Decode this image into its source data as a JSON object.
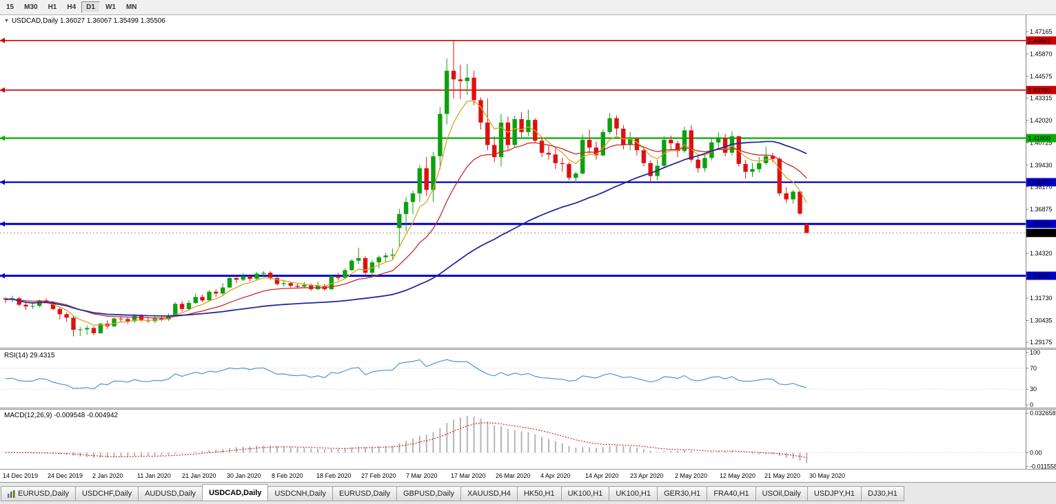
{
  "toolbar": {
    "buttons": [
      {
        "label": "15"
      },
      {
        "label": "M30"
      },
      {
        "label": "H1"
      },
      {
        "label": "H4"
      },
      {
        "label": "D1",
        "active": true
      },
      {
        "label": "W1"
      },
      {
        "label": "MN"
      }
    ]
  },
  "chart": {
    "symbol": "USDCAD,Daily",
    "title_text": "USDCAD,Daily 1.36027 1.36067 1.35499 1.35506",
    "ohlc": {
      "open": "1.36027",
      "high": "1.36067",
      "low": "1.35499",
      "close": "1.35506"
    }
  },
  "indicators": {
    "rsi": {
      "name": "RSI",
      "period": 14,
      "value": "29.4315",
      "label_text": "RSI(14) 29.4315",
      "axis_labels": [
        "100",
        "70",
        "30",
        "0"
      ],
      "levels": [
        70,
        30
      ]
    },
    "macd": {
      "name": "MACD",
      "params": "12,26,9",
      "values": [
        "-0.009548",
        "-0.004942"
      ],
      "label_text": "MACD(12,26,9) -0.009548 -0.004942",
      "axis_labels": [
        "0.032658",
        "0.00",
        "-0.011558"
      ]
    }
  },
  "chart_data": {
    "type": "candlestick",
    "symbol": "USDCAD",
    "timeframe": "Daily",
    "axis": {
      "price_min": 1.2886,
      "price_max": 1.4812,
      "ticks": [
        "1.47165",
        "1.45870",
        "1.44575",
        "1.43315",
        "1.42020",
        "1.40725",
        "1.39430",
        "1.38170",
        "1.36875",
        "1.34320",
        "1.31730",
        "1.30435",
        "1.29175"
      ]
    },
    "bid": {
      "price": 1.35506,
      "label": "1.35506",
      "color": "#000000"
    },
    "hlines": [
      {
        "price": 1.46651,
        "label": "1.46651",
        "color": "#cc0000",
        "width": 1.6
      },
      {
        "price": 1.4378,
        "label": "1.43780",
        "color": "#cc0000",
        "width": 1.6
      },
      {
        "price": 1.41,
        "label": "1.41000",
        "color": "#00b000",
        "width": 2.2
      },
      {
        "price": 1.38447,
        "label": "1.38447",
        "color": "#0000cc",
        "width": 2.2
      },
      {
        "price": 1.36029,
        "label": "1.36029",
        "color": "#0000cc",
        "width": 3
      },
      {
        "price": 1.33026,
        "label": "1.33026",
        "color": "#0000cc",
        "width": 3
      }
    ],
    "moving_averages": [
      {
        "kind": "ema",
        "period": 6,
        "color": "#d9a420",
        "width": 1.3
      },
      {
        "kind": "ema",
        "period": 18,
        "color": "#c62828",
        "width": 1.3
      },
      {
        "kind": "sma",
        "period": 50,
        "color": "#26269e",
        "width": 1.8
      }
    ],
    "candle_colors": {
      "up": "#0fa00f",
      "down": "#e01010"
    },
    "rsi_line_color": "#4a96d2",
    "macd_colors": {
      "histogram": "#b4b4b4",
      "signal": "#cc0000"
    },
    "macd_axis": {
      "min": -0.0135,
      "max": 0.0355
    },
    "candles": [
      [
        1.3172,
        1.3178,
        1.3143,
        1.3165
      ],
      [
        1.3165,
        1.3187,
        1.315,
        1.3172
      ],
      [
        1.3172,
        1.3181,
        1.3126,
        1.3135
      ],
      [
        1.3135,
        1.315,
        1.3105,
        1.3125
      ],
      [
        1.3125,
        1.315,
        1.311,
        1.3128
      ],
      [
        1.3128,
        1.3165,
        1.312,
        1.316
      ],
      [
        1.316,
        1.3172,
        1.3143,
        1.315
      ],
      [
        1.315,
        1.3155,
        1.3103,
        1.311
      ],
      [
        1.311,
        1.3118,
        1.305,
        1.308
      ],
      [
        1.308,
        1.309,
        1.3035,
        1.306
      ],
      [
        1.306,
        1.307,
        1.2952,
        1.299
      ],
      [
        1.299,
        1.3005,
        1.2955,
        1.2992
      ],
      [
        1.2992,
        1.3015,
        1.296,
        1.3
      ],
      [
        1.3,
        1.301,
        1.2958,
        1.297
      ],
      [
        1.297,
        1.303,
        1.2965,
        1.3025
      ],
      [
        1.3025,
        1.3045,
        1.2995,
        1.301
      ],
      [
        1.301,
        1.306,
        1.3005,
        1.3055
      ],
      [
        1.3055,
        1.307,
        1.3035,
        1.3052
      ],
      [
        1.3052,
        1.306,
        1.3025,
        1.304
      ],
      [
        1.304,
        1.308,
        1.303,
        1.307
      ],
      [
        1.307,
        1.308,
        1.3035,
        1.3045
      ],
      [
        1.3045,
        1.3065,
        1.303,
        1.304
      ],
      [
        1.304,
        1.307,
        1.3028,
        1.3055
      ],
      [
        1.3055,
        1.307,
        1.304,
        1.305
      ],
      [
        1.305,
        1.3085,
        1.304,
        1.307
      ],
      [
        1.307,
        1.315,
        1.3065,
        1.314
      ],
      [
        1.314,
        1.3155,
        1.3095,
        1.311
      ],
      [
        1.311,
        1.316,
        1.31,
        1.3145
      ],
      [
        1.3145,
        1.32,
        1.314,
        1.318
      ],
      [
        1.318,
        1.3195,
        1.315,
        1.316
      ],
      [
        1.316,
        1.322,
        1.3155,
        1.321
      ],
      [
        1.321,
        1.3225,
        1.318,
        1.32
      ],
      [
        1.32,
        1.326,
        1.319,
        1.3235
      ],
      [
        1.3235,
        1.33,
        1.323,
        1.329
      ],
      [
        1.329,
        1.3305,
        1.326,
        1.328
      ],
      [
        1.328,
        1.332,
        1.327,
        1.33
      ],
      [
        1.33,
        1.3312,
        1.327,
        1.3285
      ],
      [
        1.3285,
        1.3325,
        1.3275,
        1.3315
      ],
      [
        1.3315,
        1.333,
        1.3295,
        1.332
      ],
      [
        1.332,
        1.333,
        1.328,
        1.329
      ],
      [
        1.329,
        1.3295,
        1.3245,
        1.3255
      ],
      [
        1.3255,
        1.328,
        1.324,
        1.326
      ],
      [
        1.326,
        1.327,
        1.3235,
        1.3245
      ],
      [
        1.3245,
        1.3255,
        1.323,
        1.324
      ],
      [
        1.324,
        1.3268,
        1.323,
        1.325
      ],
      [
        1.325,
        1.3258,
        1.3215,
        1.3225
      ],
      [
        1.3225,
        1.327,
        1.322,
        1.3245
      ],
      [
        1.3245,
        1.3255,
        1.3215,
        1.3225
      ],
      [
        1.3225,
        1.331,
        1.322,
        1.33
      ],
      [
        1.33,
        1.332,
        1.3275,
        1.329
      ],
      [
        1.329,
        1.3345,
        1.3285,
        1.3335
      ],
      [
        1.3335,
        1.34,
        1.333,
        1.339
      ],
      [
        1.339,
        1.3465,
        1.337,
        1.3405
      ],
      [
        1.3405,
        1.3415,
        1.3305,
        1.332
      ],
      [
        1.332,
        1.3395,
        1.329,
        1.338
      ],
      [
        1.338,
        1.342,
        1.3345,
        1.341
      ],
      [
        1.341,
        1.3435,
        1.338,
        1.342
      ],
      [
        1.342,
        1.346,
        1.34,
        1.3425
      ],
      [
        1.358,
        1.369,
        1.347,
        1.366
      ],
      [
        1.366,
        1.376,
        1.356,
        1.373
      ],
      [
        1.373,
        1.3795,
        1.366,
        1.378
      ],
      [
        1.378,
        1.3945,
        1.373,
        1.3925
      ],
      [
        1.3925,
        1.399,
        1.3765,
        1.38
      ],
      [
        1.38,
        1.402,
        1.373,
        1.3995
      ],
      [
        1.3995,
        1.428,
        1.392,
        1.424
      ],
      [
        1.424,
        1.456,
        1.418,
        1.449
      ],
      [
        1.449,
        1.4668,
        1.433,
        1.444
      ],
      [
        1.444,
        1.4525,
        1.4325,
        1.443
      ],
      [
        1.443,
        1.453,
        1.435,
        1.445
      ],
      [
        1.445,
        1.449,
        1.429,
        1.432
      ],
      [
        1.432,
        1.4335,
        1.415,
        1.419
      ],
      [
        1.419,
        1.433,
        1.403,
        1.406
      ],
      [
        1.406,
        1.411,
        1.396,
        1.399
      ],
      [
        1.399,
        1.424,
        1.3935,
        1.419
      ],
      [
        1.419,
        1.4225,
        1.403,
        1.406
      ],
      [
        1.406,
        1.423,
        1.4045,
        1.421
      ],
      [
        1.421,
        1.425,
        1.4105,
        1.4135
      ],
      [
        1.4135,
        1.4265,
        1.411,
        1.4205
      ],
      [
        1.4205,
        1.4215,
        1.4075,
        1.4085
      ],
      [
        1.4085,
        1.4105,
        1.399,
        1.4015
      ],
      [
        1.4015,
        1.406,
        1.3975,
        1.4005
      ],
      [
        1.4005,
        1.405,
        1.392,
        1.3955
      ],
      [
        1.3955,
        1.3985,
        1.3905,
        1.395
      ],
      [
        1.395,
        1.396,
        1.3855,
        1.387
      ],
      [
        1.387,
        1.3905,
        1.384,
        1.3895
      ],
      [
        1.3895,
        1.412,
        1.389,
        1.409
      ],
      [
        1.409,
        1.415,
        1.401,
        1.4045
      ],
      [
        1.4045,
        1.408,
        1.3975,
        1.4
      ],
      [
        1.4,
        1.415,
        1.3995,
        1.4135
      ],
      [
        1.4135,
        1.4245,
        1.412,
        1.4215
      ],
      [
        1.4215,
        1.423,
        1.4115,
        1.4155
      ],
      [
        1.4155,
        1.4175,
        1.4035,
        1.406
      ],
      [
        1.406,
        1.4135,
        1.403,
        1.4095
      ],
      [
        1.4095,
        1.4105,
        1.4,
        1.403
      ],
      [
        1.403,
        1.405,
        1.3935,
        1.3955
      ],
      [
        1.3955,
        1.397,
        1.385,
        1.388
      ],
      [
        1.388,
        1.3975,
        1.3855,
        1.394
      ],
      [
        1.394,
        1.411,
        1.393,
        1.409
      ],
      [
        1.409,
        1.4115,
        1.4035,
        1.407
      ],
      [
        1.407,
        1.4085,
        1.399,
        1.4025
      ],
      [
        1.4025,
        1.4165,
        1.4015,
        1.4145
      ],
      [
        1.4145,
        1.4175,
        1.396,
        1.3975
      ],
      [
        1.3975,
        1.4,
        1.39,
        1.3925
      ],
      [
        1.3925,
        1.401,
        1.3905,
        1.3985
      ],
      [
        1.3985,
        1.4105,
        1.397,
        1.4075
      ],
      [
        1.4075,
        1.4135,
        1.4045,
        1.41
      ],
      [
        1.41,
        1.4125,
        1.3995,
        1.4015
      ],
      [
        1.4015,
        1.414,
        1.4,
        1.411
      ],
      [
        1.411,
        1.4115,
        1.3935,
        1.395
      ],
      [
        1.395,
        1.3975,
        1.3865,
        1.3905
      ],
      [
        1.3905,
        1.3955,
        1.3875,
        1.392
      ],
      [
        1.392,
        1.399,
        1.39,
        1.3955
      ],
      [
        1.3955,
        1.405,
        1.3945,
        1.3995
      ],
      [
        1.3995,
        1.4015,
        1.396,
        1.398
      ],
      [
        1.398,
        1.399,
        1.3765,
        1.378
      ],
      [
        1.378,
        1.3815,
        1.3725,
        1.3745
      ],
      [
        1.3745,
        1.38,
        1.372,
        1.379
      ],
      [
        1.379,
        1.3795,
        1.3655,
        1.3662
      ],
      [
        1.36027,
        1.36067,
        1.35499,
        1.35506
      ]
    ],
    "dates": [
      "14 Dec 2019",
      "24 Dec 2019",
      "2 Jan 2020",
      "11 Jan 2020",
      "21 Jan 2020",
      "30 Jan 2020",
      "8 Feb 2020",
      "18 Feb 2020",
      "27 Feb 2020",
      "7 Mar 2020",
      "17 Mar 2020",
      "26 Mar 2020",
      "4 Apr 2020",
      "14 Apr 2020",
      "23 Apr 2020",
      "2 May 2020",
      "12 May 2020",
      "21 May 2020",
      "30 May 2020"
    ]
  },
  "tabs": [
    {
      "label": "EURUSD,Daily",
      "icon": "chart-icon"
    },
    {
      "label": "USDCHF,Daily"
    },
    {
      "label": "AUDUSD,Daily"
    },
    {
      "label": "USDCAD,Daily",
      "active": true
    },
    {
      "label": "USDCNH,Daily"
    },
    {
      "label": "EURUSD,Daily"
    },
    {
      "label": "GBPUSD,Daily"
    },
    {
      "label": "XAUUSD,H4"
    },
    {
      "label": "HK50,H1"
    },
    {
      "label": "UK100,H1"
    },
    {
      "label": "UK100,H1"
    },
    {
      "label": "GER30,H1"
    },
    {
      "label": "FRA40,H1"
    },
    {
      "label": "USOil,Daily"
    },
    {
      "label": "USDJPY,H1"
    },
    {
      "label": "DJ30,H1"
    }
  ]
}
